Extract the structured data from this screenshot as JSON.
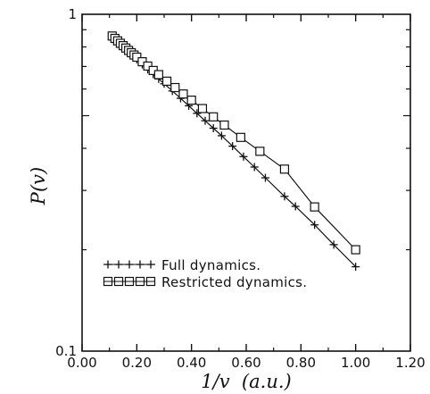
{
  "chart_data": {
    "type": "scatter",
    "xlabel": "1/v  (a.u.)",
    "ylabel": "P(v)",
    "xlim": [
      0.0,
      1.2
    ],
    "ylim": [
      0.1,
      1.0
    ],
    "y_scale": "log",
    "grid": false,
    "legend_position": "bottom-left",
    "x_ticks": [
      "0.00",
      "0.20",
      "0.40",
      "0.60",
      "0.80",
      "1.00",
      "1.20"
    ],
    "y_ticks": [
      "0.1",
      "1"
    ],
    "series": [
      {
        "name": "Full dynamics.",
        "marker": "plus",
        "x": [
          0.11,
          0.12,
          0.13,
          0.14,
          0.15,
          0.16,
          0.17,
          0.18,
          0.19,
          0.2,
          0.22,
          0.24,
          0.26,
          0.28,
          0.3,
          0.33,
          0.36,
          0.39,
          0.42,
          0.45,
          0.48,
          0.51,
          0.55,
          0.59,
          0.63,
          0.67,
          0.74,
          0.78,
          0.85,
          0.92,
          1.0
        ],
        "y": [
          0.86,
          0.845,
          0.83,
          0.815,
          0.8,
          0.787,
          0.773,
          0.76,
          0.747,
          0.735,
          0.71,
          0.686,
          0.664,
          0.643,
          0.622,
          0.592,
          0.563,
          0.535,
          0.508,
          0.483,
          0.459,
          0.436,
          0.406,
          0.378,
          0.352,
          0.327,
          0.288,
          0.269,
          0.237,
          0.207,
          0.178
        ]
      },
      {
        "name": "Restricted dynamics.",
        "marker": "square",
        "x": [
          0.11,
          0.12,
          0.13,
          0.14,
          0.15,
          0.16,
          0.17,
          0.18,
          0.19,
          0.2,
          0.22,
          0.24,
          0.26,
          0.28,
          0.31,
          0.34,
          0.37,
          0.4,
          0.44,
          0.48,
          0.52,
          0.58,
          0.65,
          0.74,
          0.85,
          1.0
        ],
        "y": [
          0.862,
          0.848,
          0.834,
          0.82,
          0.807,
          0.794,
          0.781,
          0.769,
          0.757,
          0.746,
          0.723,
          0.702,
          0.681,
          0.662,
          0.633,
          0.606,
          0.58,
          0.556,
          0.525,
          0.496,
          0.469,
          0.431,
          0.392,
          0.347,
          0.268,
          0.2
        ]
      }
    ]
  }
}
